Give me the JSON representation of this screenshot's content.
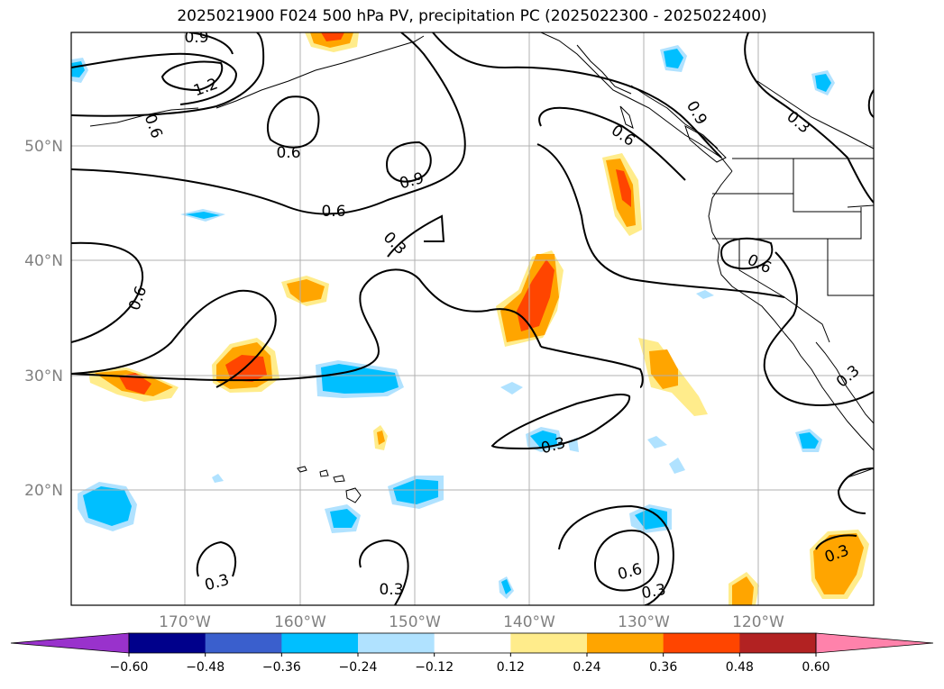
{
  "title": "2025021900 F024 500 hPa PV, precipitation PC (2025022300 - 2025022400)",
  "lat_labels": [
    "50°N",
    "40°N",
    "30°N",
    "20°N"
  ],
  "lon_labels": [
    "170°W",
    "160°W",
    "150°W",
    "140°W",
    "130°W",
    "120°W"
  ],
  "contour_labels": [
    "0.9",
    "1.2",
    "0.6",
    "0.6",
    "0.9",
    "0.6",
    "0.3",
    "0.6",
    "0.6",
    "0.9",
    "0.3",
    "0.6",
    "0.3",
    "0.3",
    "0.3",
    "0.3",
    "0.6",
    "0.3",
    "0.3"
  ],
  "colorbar": {
    "ticks": [
      "−0.60",
      "−0.48",
      "−0.36",
      "−0.24",
      "−0.12",
      "0.12",
      "0.24",
      "0.36",
      "0.48",
      "0.60"
    ],
    "colors": [
      "#9932cc",
      "#00008b",
      "#3a5fcd",
      "#00bfff",
      "#b0e2ff",
      "#ffffff",
      "#ffec8b",
      "#ffa500",
      "#ff4500",
      "#b22222",
      "#ff82ab"
    ]
  }
}
